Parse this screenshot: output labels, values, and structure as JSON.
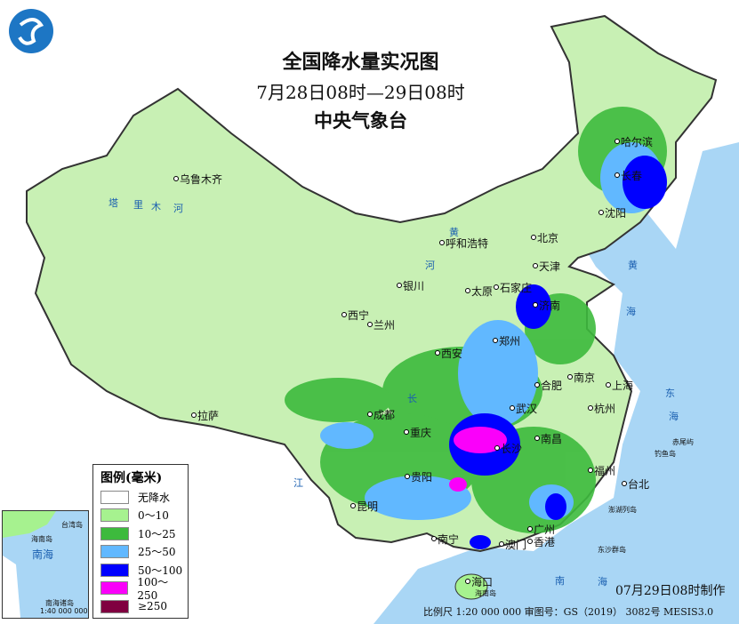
{
  "title": "全国降水量实况图",
  "period": "7月28日08时—29日08时",
  "issuer": "中央气象台",
  "legend": {
    "title": "图例(毫米)",
    "items": [
      {
        "label": "无降水",
        "color": "#ffffff"
      },
      {
        "label": "0～10",
        "color": "#a6f28f"
      },
      {
        "label": "10～25",
        "color": "#3dba3d"
      },
      {
        "label": "25～50",
        "color": "#61b8ff"
      },
      {
        "label": "50～100",
        "color": "#0000ff"
      },
      {
        "label": "100～250",
        "color": "#fa00fa"
      },
      {
        "label": "≥250",
        "color": "#800040"
      }
    ]
  },
  "cities": [
    "乌鲁木齐",
    "哈尔滨",
    "长春",
    "沈阳",
    "呼和浩特",
    "北京",
    "天津",
    "银川",
    "太原",
    "石家庄",
    "济南",
    "西宁",
    "兰州",
    "郑州",
    "西安",
    "南京",
    "合肥",
    "上海",
    "成都",
    "武汉",
    "杭州",
    "重庆",
    "长沙",
    "南昌",
    "拉萨",
    "贵阳",
    "福州",
    "台北",
    "昆明",
    "南宁",
    "广州",
    "澳门",
    "香港",
    "海口"
  ],
  "seas": [
    "黄",
    "海",
    "东",
    "海",
    "南",
    "海"
  ],
  "islands": [
    "钓鱼岛",
    "赤尾屿",
    "澎湖列岛",
    "东沙群岛",
    "海南岛"
  ],
  "rivers": [
    "塔",
    "里",
    "木",
    "河",
    "黄",
    "河",
    "长",
    "江"
  ],
  "inset": {
    "labels": [
      "南海",
      "海南岛",
      "台湾岛",
      "南海诸岛"
    ],
    "scale": "1:40 000 000"
  },
  "made_time": "07月29日08时制作",
  "footer": "比例尺 1:20 000 000 审图号：GS（2019） 3082号 MESIS3.0",
  "colors": {
    "sea": "#a9d6f5",
    "land_outside": "#ffffff",
    "border": "#333333"
  }
}
